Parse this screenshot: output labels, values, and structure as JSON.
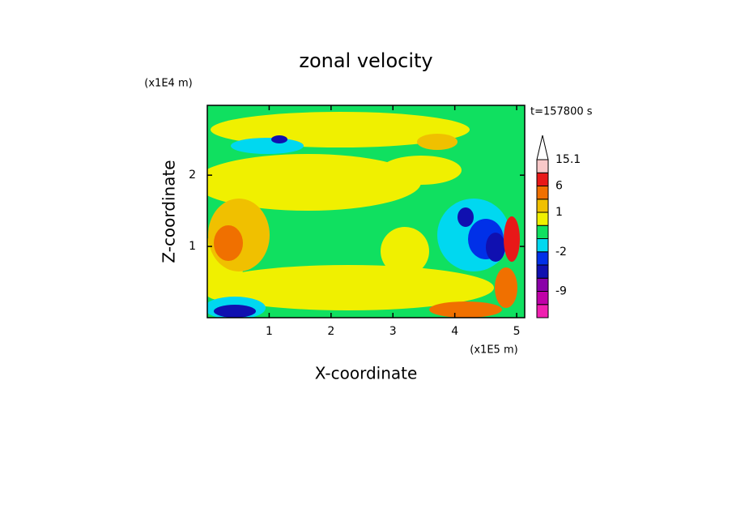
{
  "chart_data": {
    "type": "contour",
    "title": "zonal velocity",
    "x_label": "X-coordinate",
    "y_label": "Z-coordinate",
    "x_unit": "(x1E5 m)",
    "y_unit": "(x1E4 m)",
    "annotation": "t=157800 s",
    "xlim": [
      0,
      5.13
    ],
    "xticks": [
      1,
      2,
      3,
      4,
      5
    ],
    "ylim": [
      0,
      2.98
    ],
    "yticks": [
      1,
      2
    ],
    "colorbar": {
      "levels": [
        -12,
        -9,
        -6,
        -3,
        -2,
        -1,
        0,
        1,
        3,
        6,
        10,
        15.1
      ],
      "colors": [
        "#f020b0",
        "#c000a8",
        "#8a00a8",
        "#1010b0",
        "#0030e8",
        "#00d8f0",
        "#10e060",
        "#f0f000",
        "#f0c000",
        "#f07000",
        "#e81818",
        "#f8c8c8",
        "#ffffff"
      ],
      "ticks": [
        -9,
        -2,
        1,
        6,
        15.1
      ]
    }
  }
}
